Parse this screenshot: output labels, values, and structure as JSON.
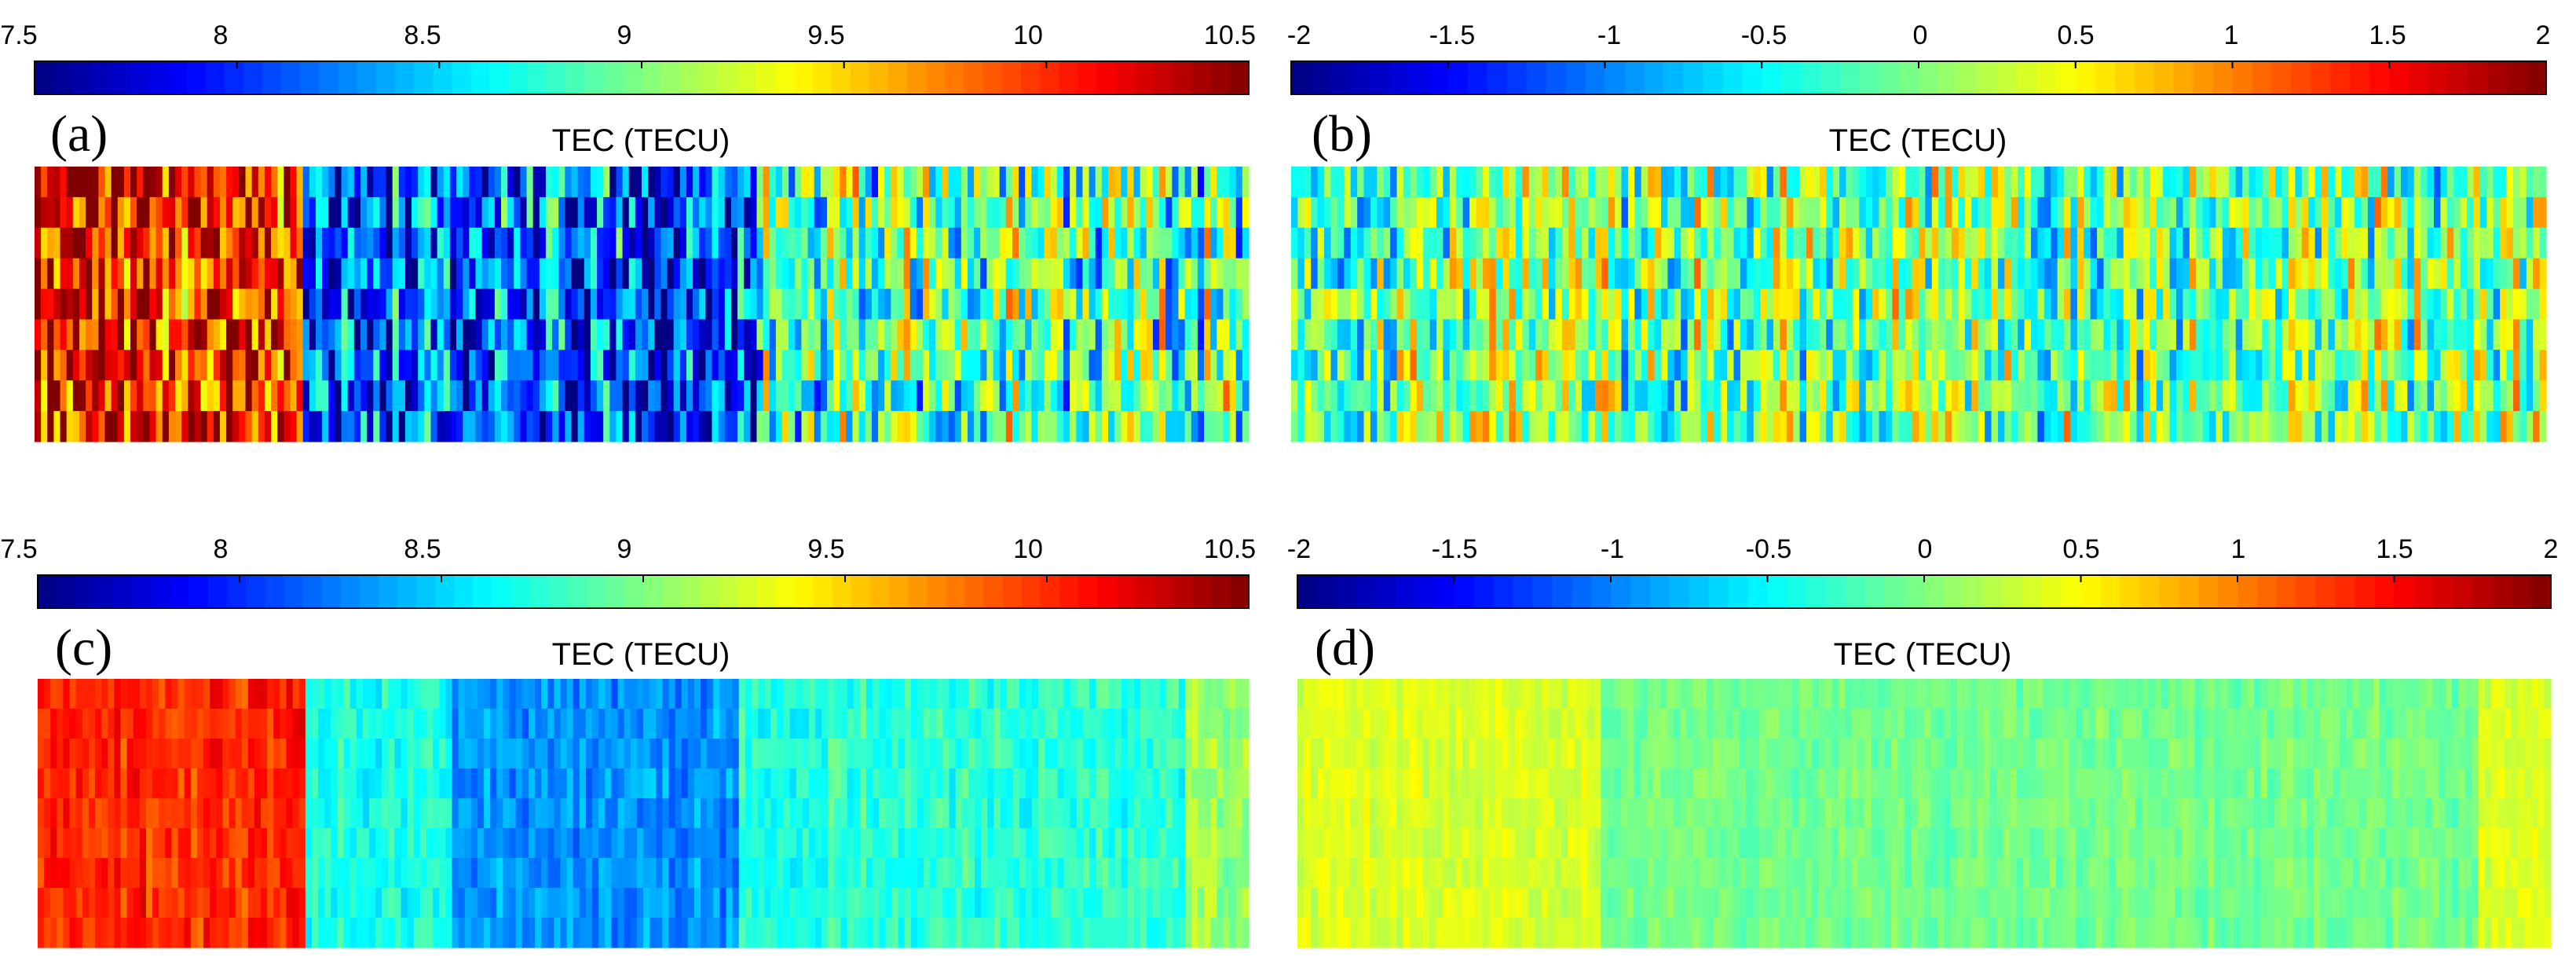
{
  "colormap": {
    "name": "jet",
    "stops": [
      "#000080",
      "#0000ff",
      "#0080ff",
      "#00ffff",
      "#80ff80",
      "#ffff00",
      "#ff8000",
      "#ff0000",
      "#800000"
    ]
  },
  "chart_data": [
    {
      "type": "heatmap",
      "panel_label": "(a)",
      "title": "TEC (TECU)",
      "colorbar": {
        "range": [
          7.5,
          10.5
        ],
        "ticks": [
          7.5,
          8,
          8.5,
          9,
          9.5,
          10,
          10.5
        ],
        "tick_labels": [
          "7.5",
          "8",
          "8.5",
          "9",
          "9.5",
          "10",
          "10.5"
        ]
      },
      "field": {
        "base": 9.0,
        "bands": [
          [
            0.0,
            0.22,
            10.1
          ],
          [
            0.22,
            0.6,
            8.1
          ],
          [
            0.6,
            1.0,
            8.9
          ]
        ],
        "noise_amplitude": 1.3
      }
    },
    {
      "type": "heatmap",
      "panel_label": "(b)",
      "title": "TEC (TECU)",
      "colorbar": {
        "range": [
          -2,
          2
        ],
        "ticks": [
          -2,
          -1.5,
          -1,
          -0.5,
          0,
          0.5,
          1,
          1.5,
          2
        ],
        "tick_labels": [
          "-2",
          "-1.5",
          "-1",
          "-0.5",
          "0",
          "0.5",
          "1",
          "1.5",
          "2"
        ]
      },
      "field": {
        "base": 0.0,
        "bands": [
          [
            0.0,
            1.0,
            0.0
          ]
        ],
        "noise_amplitude": 1.5
      }
    },
    {
      "type": "heatmap",
      "panel_label": "(c)",
      "title": "TEC (TECU)",
      "colorbar": {
        "range": [
          7.5,
          10.5
        ],
        "ticks": [
          7.5,
          8,
          8.5,
          9,
          9.5,
          10,
          10.5
        ],
        "tick_labels": [
          "7.5",
          "8",
          "8.5",
          "9",
          "9.5",
          "10",
          "10.5"
        ]
      },
      "field": {
        "base": 8.7,
        "bands": [
          [
            0.0,
            0.22,
            10.0
          ],
          [
            0.22,
            0.34,
            8.7
          ],
          [
            0.34,
            0.58,
            8.3
          ],
          [
            0.58,
            0.95,
            8.75
          ],
          [
            0.95,
            1.0,
            9.1
          ]
        ],
        "noise_amplitude": 0.3
      }
    },
    {
      "type": "heatmap",
      "panel_label": "(d)",
      "title": "TEC (TECU)",
      "colorbar": {
        "range": [
          -2,
          2
        ],
        "ticks": [
          -2,
          -1.5,
          -1,
          -0.5,
          0,
          0.5,
          1,
          1.5,
          2
        ],
        "tick_labels": [
          "-2",
          "-1.5",
          "-1",
          "-0.5",
          "0",
          "0.5",
          "1",
          "1.5",
          "2"
        ]
      },
      "field": {
        "base": 0.0,
        "bands": [
          [
            0.0,
            0.24,
            0.35
          ],
          [
            0.24,
            0.94,
            -0.05
          ],
          [
            0.94,
            1.0,
            0.35
          ]
        ],
        "noise_amplitude": 0.25
      }
    }
  ]
}
